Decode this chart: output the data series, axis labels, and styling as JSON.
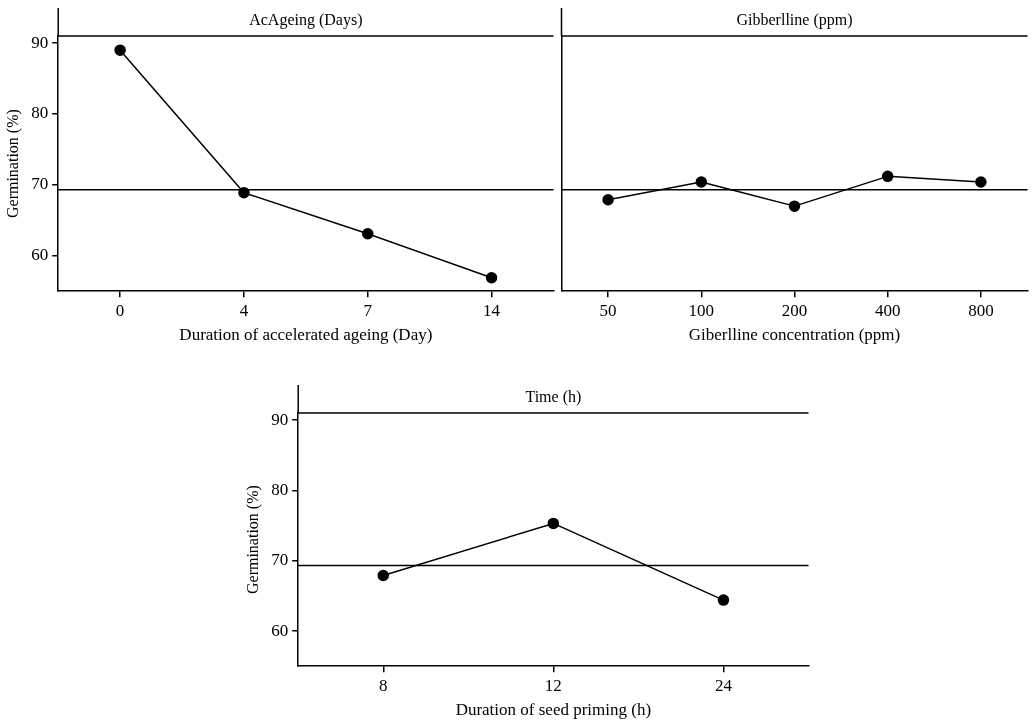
{
  "chart_data": [
    {
      "type": "line",
      "title": "AcAgeing (Days)",
      "xlabel": "Duration of accelerated ageing (Day)",
      "ylabel": "Germination (%)",
      "categories": [
        "0",
        "4",
        "7",
        "14"
      ],
      "series": [
        {
          "color": "#000000",
          "values": [
            89.0,
            68.9,
            63.1,
            56.9
          ]
        }
      ],
      "ylim": [
        55,
        91
      ],
      "yticks": [
        60,
        70,
        80,
        90
      ],
      "marker": "circle",
      "ref_lines": [
        {
          "axis": "y",
          "value": 69.3
        }
      ]
    },
    {
      "type": "line",
      "title": "Gibberlline (ppm)",
      "xlabel": "Giberlline concentration (ppm)",
      "categories": [
        "50",
        "100",
        "200",
        "400",
        "800"
      ],
      "series": [
        {
          "color": "#000000",
          "values": [
            67.9,
            70.4,
            67.0,
            71.2,
            70.4
          ]
        }
      ],
      "ylim": [
        55,
        91
      ],
      "yticks": [
        60,
        70,
        80,
        90
      ],
      "tick_labels": "x",
      "marker": "circle",
      "ref_lines": [
        {
          "axis": "y",
          "value": 69.3
        }
      ]
    },
    {
      "type": "line",
      "title": "Time (h)",
      "xlabel": "Duration of seed priming (h)",
      "ylabel": "Germination (%)",
      "categories": [
        "8",
        "12",
        "24"
      ],
      "series": [
        {
          "color": "#000000",
          "values": [
            67.9,
            75.3,
            64.4
          ]
        }
      ],
      "ylim": [
        55,
        91
      ],
      "yticks": [
        60,
        70,
        80,
        90
      ],
      "marker": "circle",
      "ref_lines": [
        {
          "axis": "y",
          "value": 69.3
        }
      ]
    }
  ]
}
